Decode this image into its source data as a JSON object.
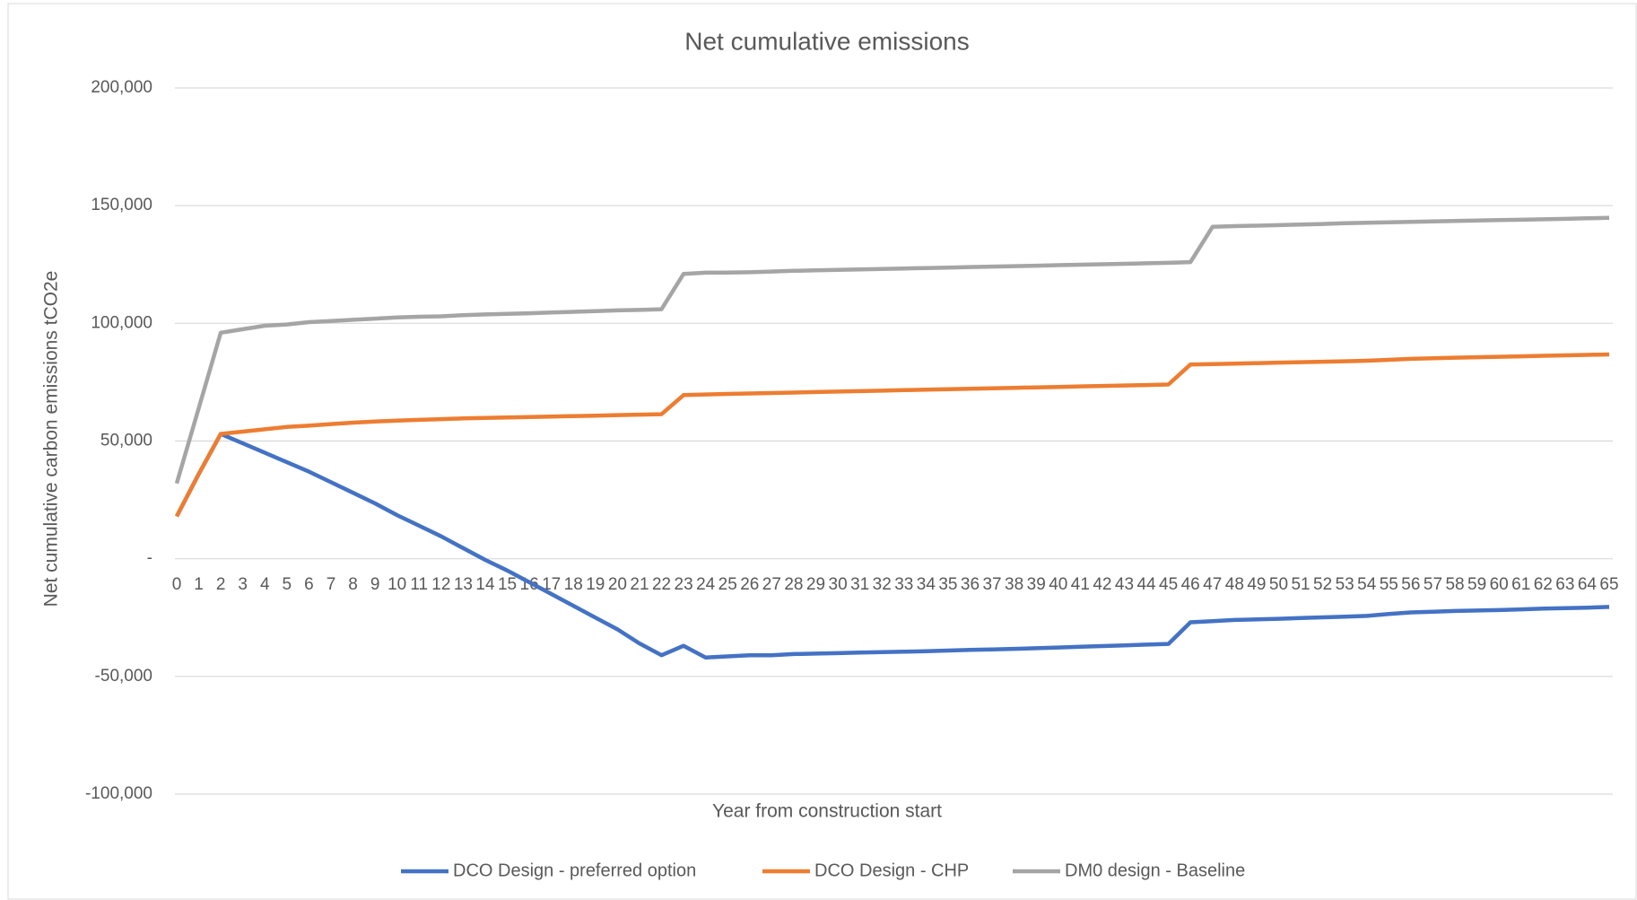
{
  "chart_data": {
    "type": "line",
    "title": "Net cumulative emissions",
    "x_label": "Year from construction start",
    "y_label": "Net cumulative carbon emissions tCO2e",
    "categories": [
      0,
      1,
      2,
      3,
      4,
      5,
      6,
      7,
      8,
      9,
      10,
      11,
      12,
      13,
      14,
      15,
      16,
      17,
      18,
      19,
      20,
      21,
      22,
      23,
      24,
      25,
      26,
      27,
      28,
      29,
      30,
      31,
      32,
      33,
      34,
      35,
      36,
      37,
      38,
      39,
      40,
      41,
      42,
      43,
      44,
      45,
      46,
      47,
      48,
      49,
      50,
      51,
      52,
      53,
      54,
      55,
      56,
      57,
      58,
      59,
      60,
      61,
      62,
      63,
      64,
      65
    ],
    "ylim": [
      -100000,
      200000
    ],
    "yticks": [
      {
        "value": -100000,
        "label": "-100,000"
      },
      {
        "value": -50000,
        "label": "-50,000"
      },
      {
        "value": 0,
        "label": "-"
      },
      {
        "value": 50000,
        "label": "50,000"
      },
      {
        "value": 100000,
        "label": "100,000"
      },
      {
        "value": 150000,
        "label": "150,000"
      },
      {
        "value": 200000,
        "label": "200,000"
      }
    ],
    "grid": true,
    "legend": "bottom",
    "series": [
      {
        "name": "DCO Design - preferred option",
        "color": "#4472c4",
        "values": [
          18000,
          36000,
          53000,
          49000,
          45000,
          41000,
          37000,
          32500,
          28000,
          23500,
          18500,
          14000,
          9500,
          4500,
          -500,
          -5000,
          -10000,
          -15000,
          -20000,
          -25000,
          -30000,
          -36000,
          -41000,
          -37000,
          -42000,
          -41500,
          -41000,
          -41000,
          -40500,
          -40300,
          -40100,
          -39900,
          -39700,
          -39500,
          -39300,
          -39000,
          -38700,
          -38500,
          -38300,
          -38000,
          -37700,
          -37400,
          -37100,
          -36800,
          -36500,
          -36200,
          -27000,
          -26500,
          -26000,
          -25800,
          -25500,
          -25200,
          -24900,
          -24600,
          -24300,
          -23500,
          -22800,
          -22500,
          -22200,
          -22000,
          -21800,
          -21500,
          -21200,
          -21000,
          -20800,
          -20500
        ]
      },
      {
        "name": "DCO Design - CHP",
        "color": "#ed7d31",
        "values": [
          18000,
          36000,
          53000,
          54000,
          55000,
          56000,
          56500,
          57200,
          57800,
          58300,
          58700,
          59000,
          59300,
          59600,
          59800,
          60000,
          60200,
          60400,
          60600,
          60800,
          61000,
          61200,
          61400,
          69500,
          69800,
          70000,
          70200,
          70400,
          70600,
          70800,
          71000,
          71200,
          71400,
          71600,
          71800,
          72000,
          72200,
          72400,
          72600,
          72800,
          73000,
          73200,
          73400,
          73600,
          73800,
          74000,
          82500,
          82700,
          82900,
          83100,
          83300,
          83500,
          83700,
          83900,
          84100,
          84500,
          84900,
          85200,
          85400,
          85600,
          85800,
          86000,
          86200,
          86400,
          86600,
          86800
        ]
      },
      {
        "name": "DM0 design - Baseline",
        "color": "#a5a5a5",
        "values": [
          32000,
          64000,
          96000,
          97500,
          99000,
          99500,
          100500,
          101000,
          101500,
          102000,
          102500,
          102800,
          103000,
          103500,
          103800,
          104000,
          104300,
          104600,
          104900,
          105200,
          105500,
          105700,
          106000,
          121000,
          121500,
          121600,
          121700,
          122000,
          122300,
          122500,
          122700,
          122900,
          123100,
          123300,
          123500,
          123700,
          123900,
          124100,
          124300,
          124500,
          124700,
          124900,
          125100,
          125300,
          125500,
          125700,
          126000,
          141000,
          141300,
          141500,
          141700,
          142000,
          142200,
          142500,
          142700,
          142900,
          143100,
          143300,
          143500,
          143700,
          143900,
          144000,
          144200,
          144400,
          144600,
          144800
        ]
      }
    ]
  }
}
